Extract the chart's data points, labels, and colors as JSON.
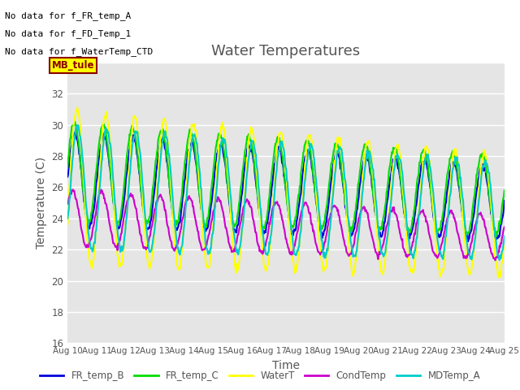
{
  "title": "Water Temperatures",
  "xlabel": "Time",
  "ylabel": "Temperature (C)",
  "ylim": [
    16,
    34
  ],
  "background_color": "#e5e5e5",
  "fig_background": "#ffffff",
  "annotations": [
    "No data for f_FR_temp_A",
    "No data for f_FD_Temp_1",
    "No data for f_WaterTemp_CTD"
  ],
  "mb_tule_label": "MB_tule",
  "x_tick_labels": [
    "Aug 10",
    "Aug 11",
    "Aug 12",
    "Aug 13",
    "Aug 14",
    "Aug 15",
    "Aug 16",
    "Aug 17",
    "Aug 18",
    "Aug 19",
    "Aug 20",
    "Aug 21",
    "Aug 22",
    "Aug 23",
    "Aug 24",
    "Aug 25"
  ],
  "series": {
    "FR_temp_B": {
      "color": "#0000dd",
      "linewidth": 1.5
    },
    "FR_temp_C": {
      "color": "#00dd00",
      "linewidth": 1.5
    },
    "WaterT": {
      "color": "#ffff00",
      "linewidth": 1.5
    },
    "CondTemp": {
      "color": "#cc00cc",
      "linewidth": 1.5
    },
    "MDTemp_A": {
      "color": "#00cccc",
      "linewidth": 1.5
    }
  },
  "yticks": [
    16,
    18,
    20,
    22,
    24,
    26,
    28,
    30,
    32,
    34
  ]
}
